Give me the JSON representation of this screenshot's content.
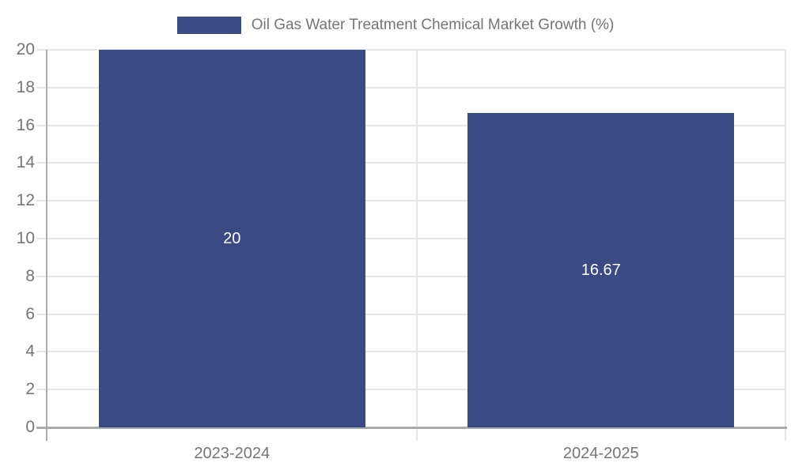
{
  "legend": {
    "label": "Oil Gas Water Treatment Chemical Market Growth (%)"
  },
  "chart_data": {
    "type": "bar",
    "title": "Oil Gas Water Treatment Chemical Market Growth (%)",
    "categories": [
      "2023-2024",
      "2024-2025"
    ],
    "values": [
      20,
      16.67
    ],
    "value_labels": [
      "20",
      "16.67"
    ],
    "yticks": [
      0,
      2,
      4,
      6,
      8,
      10,
      12,
      14,
      16,
      18,
      20
    ],
    "ylim": [
      0,
      20
    ],
    "xlabel": "",
    "ylabel": "",
    "grid": true,
    "legend_position": "top-center",
    "colors": {
      "bar": "#3a4a85",
      "grid": "#e6e6e6",
      "axis": "#ababab",
      "tick_text": "#757575",
      "value_text": "#ffffff",
      "background": "#ffffff"
    }
  }
}
